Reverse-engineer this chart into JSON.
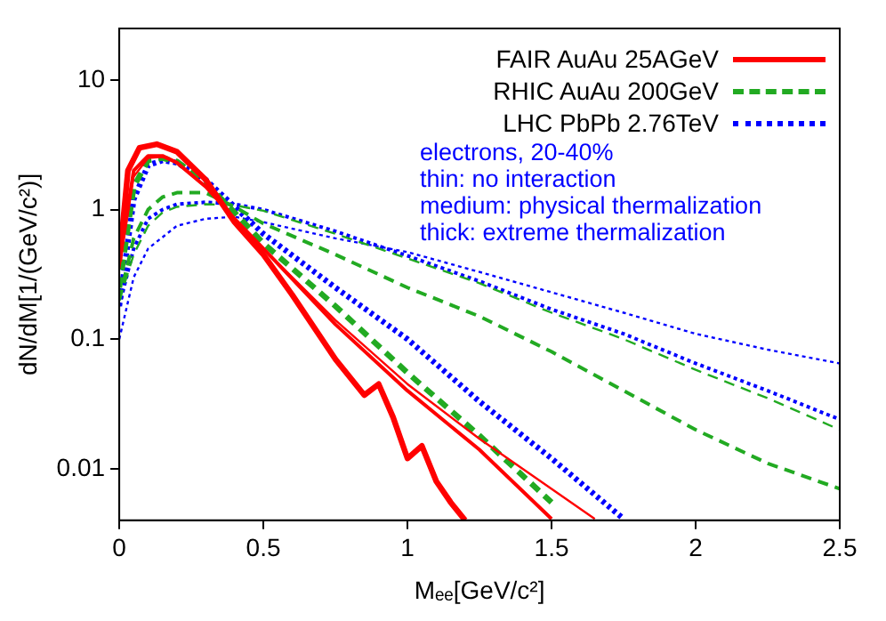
{
  "chart_data": {
    "type": "line",
    "xlabel": "Mₑₑ[GeV/c²]",
    "ylabel": "dN/dM[1/(GeV/c²)]",
    "log": "y",
    "xlim": [
      0,
      2.5
    ],
    "xticks": [
      0,
      0.5,
      1,
      1.5,
      2,
      2.5
    ],
    "ylim": [
      0.004,
      25
    ],
    "yticks": [
      0.01,
      0.1,
      1,
      10
    ],
    "grid": false,
    "legend": "top right",
    "marker": "none",
    "annotations": [
      "electrons, 20-40%",
      "thin: no interaction",
      "medium: physical thermalization",
      "thick: extreme thermalization"
    ],
    "series": [
      {
        "color": "#ff0000",
        "line_style": "solid",
        "x": [
          0,
          0.05,
          0.1,
          0.15,
          0.2,
          0.3,
          0.4,
          0.5,
          0.75,
          1,
          1.25,
          1.5,
          1.65
        ],
        "values": [
          0.35,
          1.8,
          2.5,
          2.55,
          2.3,
          1.5,
          0.85,
          0.5,
          0.14,
          0.045,
          0.017,
          0.007,
          0.0041
        ]
      },
      {
        "name": "FAIR AuAu 25AGeV",
        "color": "#ff0000",
        "line_style": "solid",
        "x": [
          0,
          0.05,
          0.1,
          0.15,
          0.2,
          0.3,
          0.4,
          0.5,
          0.75,
          1,
          1.25,
          1.5
        ],
        "values": [
          0.4,
          2.0,
          2.6,
          2.6,
          2.3,
          1.5,
          0.85,
          0.5,
          0.13,
          0.04,
          0.014,
          0.0041
        ]
      },
      {
        "color": "#ff0000",
        "line_style": "solid",
        "x": [
          0,
          0.03,
          0.07,
          0.13,
          0.2,
          0.3,
          0.4,
          0.5,
          0.6,
          0.75,
          0.85,
          0.9,
          0.95,
          1,
          1.05,
          1.1,
          1.15,
          1.2
        ],
        "values": [
          0.4,
          2.0,
          3.0,
          3.2,
          2.8,
          1.7,
          0.8,
          0.45,
          0.22,
          0.07,
          0.037,
          0.045,
          0.025,
          0.012,
          0.015,
          0.008,
          0.0055,
          0.004
        ]
      },
      {
        "color": "#22aa22",
        "line_style": "dashed",
        "x": [
          0,
          0.05,
          0.1,
          0.15,
          0.2,
          0.3,
          0.4,
          0.5,
          0.75,
          1,
          1.25,
          1.5,
          1.75,
          2,
          2.25,
          2.5
        ],
        "values": [
          0.2,
          0.45,
          0.75,
          0.95,
          1.05,
          1.1,
          1.08,
          0.98,
          0.65,
          0.42,
          0.27,
          0.16,
          0.1,
          0.058,
          0.035,
          0.02
        ]
      },
      {
        "name": "RHIC AuAu 200GeV",
        "color": "#22aa22",
        "line_style": "dashed",
        "x": [
          0,
          0.05,
          0.1,
          0.15,
          0.2,
          0.3,
          0.4,
          0.5,
          0.75,
          1,
          1.25,
          1.5,
          1.75,
          2,
          2.25,
          2.5
        ],
        "values": [
          0.2,
          0.6,
          1.0,
          1.25,
          1.35,
          1.35,
          1.05,
          0.78,
          0.45,
          0.25,
          0.15,
          0.08,
          0.04,
          0.02,
          0.011,
          0.007
        ]
      },
      {
        "color": "#22aa22",
        "line_style": "dashed",
        "x": [
          0,
          0.05,
          0.1,
          0.15,
          0.2,
          0.3,
          0.4,
          0.5,
          0.75,
          1,
          1.25,
          1.5
        ],
        "values": [
          0.25,
          1.5,
          2.4,
          2.5,
          2.35,
          1.6,
          0.95,
          0.55,
          0.18,
          0.055,
          0.018,
          0.0055
        ]
      },
      {
        "color": "#0000ff",
        "line_style": "dotted",
        "x": [
          0,
          0.05,
          0.1,
          0.2,
          0.3,
          0.4,
          0.5,
          0.75,
          1,
          1.25,
          1.5,
          1.75,
          2,
          2.25,
          2.5
        ],
        "values": [
          0.1,
          0.3,
          0.5,
          0.75,
          0.85,
          0.88,
          0.8,
          0.6,
          0.47,
          0.33,
          0.23,
          0.16,
          0.11,
          0.083,
          0.065
        ]
      },
      {
        "name": "LHC PbPb 2.76TeV",
        "color": "#0000ff",
        "line_style": "dotted",
        "x": [
          0,
          0.05,
          0.1,
          0.15,
          0.2,
          0.3,
          0.4,
          0.5,
          0.75,
          1,
          1.25,
          1.5,
          1.75,
          2,
          2.25,
          2.5
        ],
        "values": [
          0.18,
          0.5,
          0.85,
          1.0,
          1.1,
          1.14,
          1.1,
          1.0,
          0.68,
          0.44,
          0.28,
          0.17,
          0.11,
          0.065,
          0.04,
          0.024
        ]
      },
      {
        "color": "#0000ff",
        "line_style": "dotted",
        "x": [
          0,
          0.05,
          0.1,
          0.15,
          0.2,
          0.3,
          0.4,
          0.5,
          0.75,
          1,
          1.25,
          1.5,
          1.75
        ],
        "values": [
          0.18,
          1.2,
          2.2,
          2.4,
          2.3,
          1.7,
          1.05,
          0.65,
          0.25,
          0.1,
          0.033,
          0.012,
          0.0041
        ]
      }
    ]
  }
}
